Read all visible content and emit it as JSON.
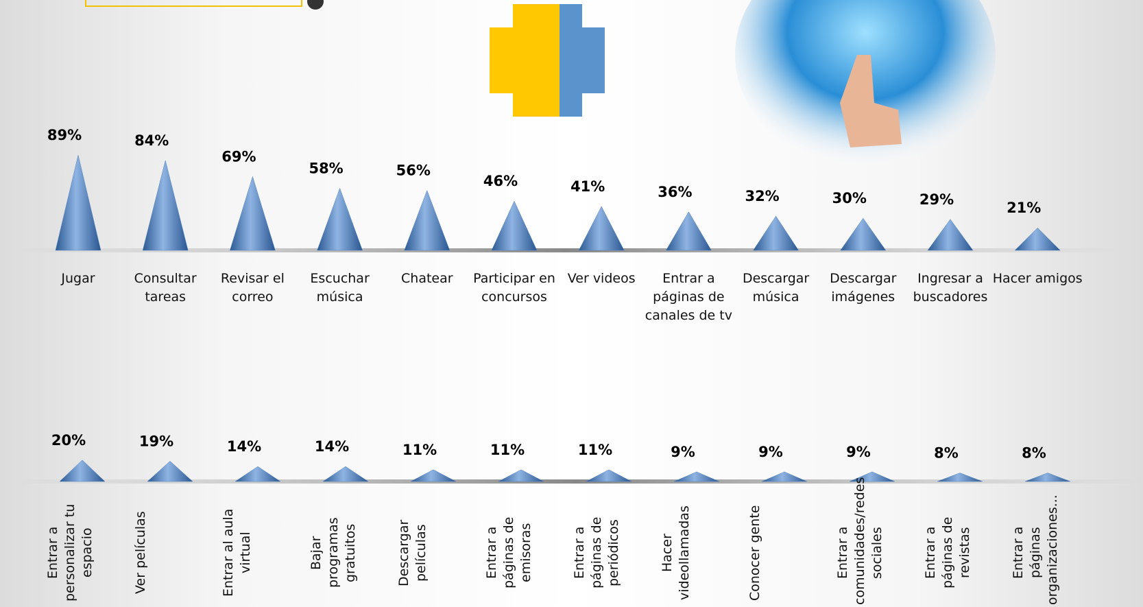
{
  "chart_data": [
    {
      "type": "cone",
      "color": "#4f81bd",
      "categories": [
        "Jugar",
        "Consultar tareas",
        "Revisar el correo",
        "Escuchar música",
        "Chatear",
        "Participar en concursos",
        "Ver videos",
        "Entrar a páginas de canales de tv",
        "Descargar música",
        "Descargar imágenes",
        "Ingresar a buscadores",
        "Hacer amigos"
      ],
      "values": [
        89,
        84,
        69,
        58,
        56,
        46,
        41,
        36,
        32,
        30,
        29,
        21
      ],
      "value_labels": [
        "89%",
        "84%",
        "69%",
        "58%",
        "56%",
        "46%",
        "41%",
        "36%",
        "32%",
        "30%",
        "29%",
        "21%"
      ]
    },
    {
      "type": "cone",
      "color": "#4f81bd",
      "categories": [
        "Entrar a personalizar tu espacio",
        "Ver películas",
        "Entrar al aula virtual",
        "Bajar programas gratuitos",
        "Descargar películas",
        "Entrar a páginas de emisoras",
        "Entrar a páginas de periódicos",
        "Hacer videollamadas",
        "Conocer gente",
        "Entrar a comunidades/redes sociales",
        "Entrar a páginas de revistas",
        "Entrar a páginas organizaciones..."
      ],
      "values": [
        20,
        19,
        14,
        14,
        11,
        11,
        11,
        9,
        9,
        9,
        8,
        8
      ],
      "value_labels": [
        "20%",
        "19%",
        "14%",
        "14%",
        "11%",
        "11%",
        "11%",
        "9%",
        "9%",
        "9%",
        "8%",
        "8%"
      ]
    }
  ]
}
